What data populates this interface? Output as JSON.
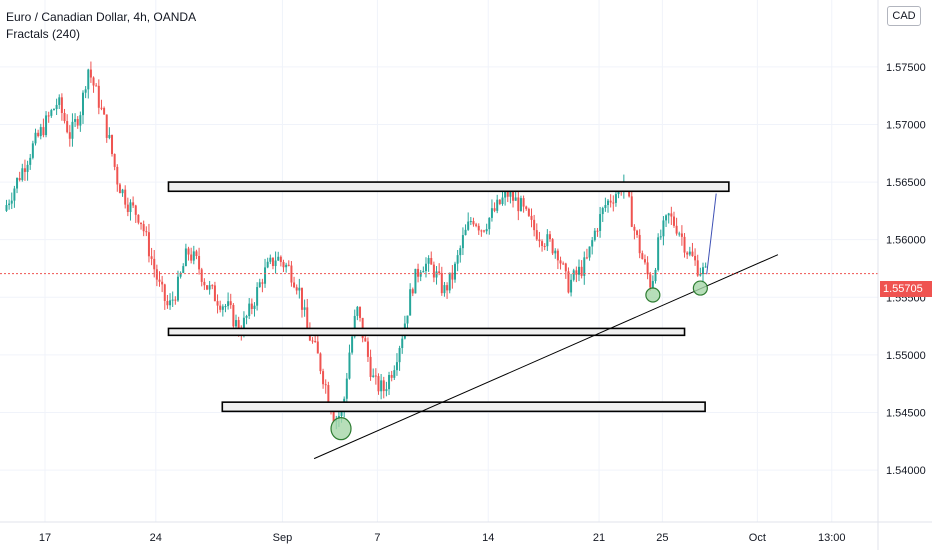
{
  "header": {
    "title": "Euro / Canadian Dollar, 4h, OANDA",
    "indicator": "Fractals (240)"
  },
  "currency_button": "CAD",
  "colors": {
    "up": "#26a69a",
    "down": "#ef5350",
    "trendline": "#000000",
    "zone_fill": "#f0f0f0",
    "ellipse_fill": "#a5d6a7",
    "ellipse_stroke": "#2e7d32",
    "projection": "#3f51b5",
    "price_line": "#ef5350"
  },
  "chart_data": {
    "type": "candlestick",
    "symbol": "EURCAD",
    "timeframe": "4h",
    "source": "OANDA",
    "current_price": "1.55705",
    "ylim": [
      1.5355,
      1.5808
    ],
    "y_ticks": [
      "1.54000",
      "1.54500",
      "1.55000",
      "1.55500",
      "1.56000",
      "1.56500",
      "1.57000",
      "1.57500"
    ],
    "x_ticks": [
      {
        "label": "17",
        "day": 0
      },
      {
        "label": "24",
        "day": 7
      },
      {
        "label": "Sep",
        "day": 15
      },
      {
        "label": "7",
        "day": 21
      },
      {
        "label": "14",
        "day": 28
      },
      {
        "label": "21",
        "day": 35
      },
      {
        "label": "25",
        "day": 39
      },
      {
        "label": "Oct",
        "day": 45
      },
      {
        "label": "13:00",
        "day": 49.7
      }
    ],
    "close_path": [
      [
        -2.6,
        1.5625
      ],
      [
        -1.8,
        1.565
      ],
      [
        -0.8,
        1.568
      ],
      [
        0,
        1.57
      ],
      [
        0.8,
        1.572
      ],
      [
        1.6,
        1.569
      ],
      [
        2.3,
        1.5715
      ],
      [
        2.7,
        1.575
      ],
      [
        3.4,
        1.572
      ],
      [
        4.0,
        1.569
      ],
      [
        4.6,
        1.565
      ],
      [
        5.3,
        1.563
      ],
      [
        6.0,
        1.562
      ],
      [
        6.6,
        1.559
      ],
      [
        7.2,
        1.556
      ],
      [
        7.8,
        1.554
      ],
      [
        8.4,
        1.556
      ],
      [
        9.0,
        1.559
      ],
      [
        9.6,
        1.558
      ],
      [
        10.2,
        1.556
      ],
      [
        10.8,
        1.555
      ],
      [
        11.6,
        1.554
      ],
      [
        12.3,
        1.552
      ],
      [
        13.0,
        1.554
      ],
      [
        13.8,
        1.557
      ],
      [
        14.6,
        1.5585
      ],
      [
        15.4,
        1.5575
      ],
      [
        16.0,
        1.556
      ],
      [
        16.6,
        1.552
      ],
      [
        17.2,
        1.55
      ],
      [
        17.8,
        1.547
      ],
      [
        18.3,
        1.5445
      ],
      [
        18.8,
        1.545
      ],
      [
        19.2,
        1.55
      ],
      [
        19.7,
        1.554
      ],
      [
        20.2,
        1.551
      ],
      [
        20.8,
        1.5475
      ],
      [
        21.4,
        1.547
      ],
      [
        22.0,
        1.549
      ],
      [
        22.6,
        1.552
      ],
      [
        23.2,
        1.556
      ],
      [
        23.8,
        1.558
      ],
      [
        24.5,
        1.5575
      ],
      [
        25.2,
        1.5555
      ],
      [
        25.8,
        1.557
      ],
      [
        26.4,
        1.56
      ],
      [
        27.0,
        1.562
      ],
      [
        27.6,
        1.561
      ],
      [
        28.4,
        1.5625
      ],
      [
        29.2,
        1.564
      ],
      [
        30.0,
        1.563
      ],
      [
        30.8,
        1.561
      ],
      [
        31.6,
        1.56
      ],
      [
        32.4,
        1.559
      ],
      [
        33.0,
        1.556
      ],
      [
        33.6,
        1.557
      ],
      [
        34.2,
        1.558
      ],
      [
        34.8,
        1.561
      ],
      [
        35.4,
        1.563
      ],
      [
        36.0,
        1.564
      ],
      [
        36.6,
        1.565
      ],
      [
        37.2,
        1.561
      ],
      [
        37.8,
        1.558
      ],
      [
        38.3,
        1.556
      ],
      [
        38.8,
        1.56
      ],
      [
        39.4,
        1.562
      ],
      [
        40.0,
        1.561
      ],
      [
        40.6,
        1.559
      ],
      [
        41.3,
        1.5575
      ],
      [
        41.8,
        1.557
      ]
    ],
    "zones": [
      {
        "from_day": 7.8,
        "to_day": 43.2,
        "top": 1.565,
        "bottom": 1.5642
      },
      {
        "from_day": 7.8,
        "to_day": 40.4,
        "top": 1.5523,
        "bottom": 1.5517
      },
      {
        "from_day": 11.2,
        "to_day": 41.7,
        "top": 1.5459,
        "bottom": 1.5451
      }
    ],
    "trendline": {
      "from": [
        17.0,
        1.541
      ],
      "to": [
        46.3,
        1.5587
      ]
    },
    "ellipses": [
      {
        "day": 18.7,
        "price": 1.5436
      },
      {
        "day": 38.4,
        "price": 1.5552
      },
      {
        "day": 41.4,
        "price": 1.5558
      }
    ],
    "projection": {
      "from": [
        41.8,
        1.557
      ],
      "to": [
        42.4,
        1.564
      ]
    }
  }
}
